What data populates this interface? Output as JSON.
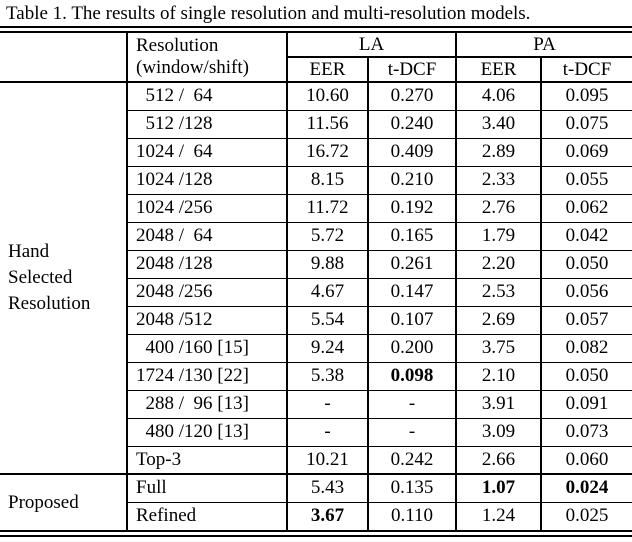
{
  "title": "Table 1. The results of single resolution and multi-resolution models.",
  "table": {
    "header": {
      "resolution_line1": "Resolution",
      "resolution_line2": "(window/shift)",
      "la": "LA",
      "pa": "PA",
      "eer": "EER",
      "tdcf": "t-DCF"
    },
    "groups": [
      {
        "lines": [
          "Hand",
          "Selected",
          "Resolution"
        ]
      },
      {
        "lines": [
          "Proposed"
        ]
      }
    ],
    "rows": [
      {
        "resolution": "  512 /  64",
        "la_eer": "10.60",
        "la_tdcf": "0.270",
        "pa_eer": "4.06",
        "pa_tdcf": "0.095"
      },
      {
        "resolution": "  512 /128",
        "la_eer": "11.56",
        "la_tdcf": "0.240",
        "pa_eer": "3.40",
        "pa_tdcf": "0.075"
      },
      {
        "resolution": "1024 /  64",
        "la_eer": "16.72",
        "la_tdcf": "0.409",
        "pa_eer": "2.89",
        "pa_tdcf": "0.069"
      },
      {
        "resolution": "1024 /128",
        "la_eer": "8.15",
        "la_tdcf": "0.210",
        "pa_eer": "2.33",
        "pa_tdcf": "0.055"
      },
      {
        "resolution": "1024 /256",
        "la_eer": "11.72",
        "la_tdcf": "0.192",
        "pa_eer": "2.76",
        "pa_tdcf": "0.062"
      },
      {
        "resolution": "2048 /  64",
        "la_eer": "5.72",
        "la_tdcf": "0.165",
        "pa_eer": "1.79",
        "pa_tdcf": "0.042"
      },
      {
        "resolution": "2048 /128",
        "la_eer": "9.88",
        "la_tdcf": "0.261",
        "pa_eer": "2.20",
        "pa_tdcf": "0.050"
      },
      {
        "resolution": "2048 /256",
        "la_eer": "4.67",
        "la_tdcf": "0.147",
        "pa_eer": "2.53",
        "pa_tdcf": "0.056"
      },
      {
        "resolution": "2048 /512",
        "la_eer": "5.54",
        "la_tdcf": "0.107",
        "pa_eer": "2.69",
        "pa_tdcf": "0.057"
      },
      {
        "resolution": "  400 /160 [15]",
        "la_eer": "9.24",
        "la_tdcf": "0.200",
        "pa_eer": "3.75",
        "pa_tdcf": "0.082"
      },
      {
        "resolution": "1724 /130 [22]",
        "la_eer": "5.38",
        "la_tdcf": "0.098",
        "pa_eer": "2.10",
        "pa_tdcf": "0.050"
      },
      {
        "resolution": "  288 /  96 [13]",
        "la_eer": "-",
        "la_tdcf": "-",
        "pa_eer": "3.91",
        "pa_tdcf": "0.091"
      },
      {
        "resolution": "  480 /120 [13]",
        "la_eer": "-",
        "la_tdcf": "-",
        "pa_eer": "3.09",
        "pa_tdcf": "0.073"
      },
      {
        "resolution": "Top-3",
        "la_eer": "10.21",
        "la_tdcf": "0.242",
        "pa_eer": "2.66",
        "pa_tdcf": "0.060"
      },
      {
        "resolution": "Full",
        "la_eer": "5.43",
        "la_tdcf": "0.135",
        "pa_eer": "1.07",
        "pa_tdcf": "0.024"
      },
      {
        "resolution": "Refined",
        "la_eer": "3.67",
        "la_tdcf": "0.110",
        "pa_eer": "1.24",
        "pa_tdcf": "0.025"
      }
    ]
  }
}
